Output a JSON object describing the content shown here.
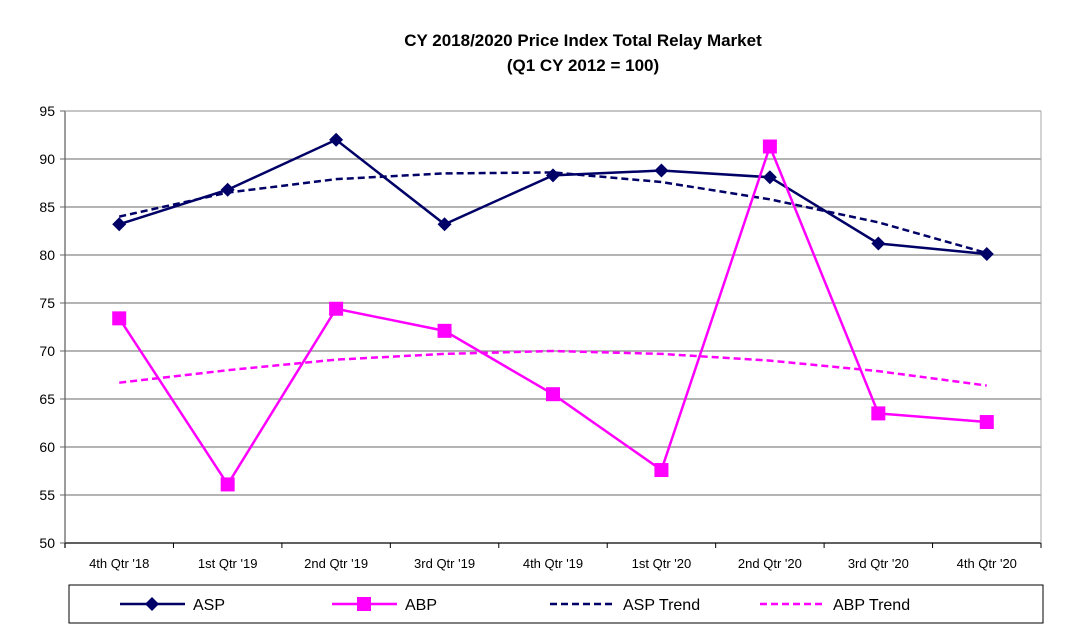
{
  "chart_data": {
    "type": "line",
    "title": "CY 2018/2020 Price Index Total Relay Market",
    "subtitle": "(Q1 CY 2012 = 100)",
    "xlabel": "",
    "ylabel": "",
    "categories": [
      "4th Qtr '18",
      "1st Qtr '19",
      "2nd Qtr  '19",
      "3rd Qtr '19",
      "4th Qtr '19",
      "1st Qtr '20",
      "2nd Qtr  '20",
      "3rd Qtr '20",
      "4th Qtr '20"
    ],
    "ylim": [
      50,
      95
    ],
    "yticks": [
      50,
      55,
      60,
      65,
      70,
      75,
      80,
      85,
      90,
      95
    ],
    "grid": true,
    "legend_position": "bottom",
    "series": [
      {
        "name": "ASP",
        "color": "#000066",
        "style": "solid",
        "marker": "diamond",
        "values": [
          83.2,
          86.8,
          92.0,
          83.2,
          88.3,
          88.8,
          88.1,
          81.2,
          80.1
        ]
      },
      {
        "name": "ABP",
        "color": "#ff00ff",
        "style": "solid",
        "marker": "square",
        "values": [
          73.4,
          56.1,
          74.4,
          72.1,
          65.5,
          57.6,
          91.3,
          63.5,
          62.6
        ]
      },
      {
        "name": "ASP Trend",
        "color": "#000066",
        "style": "dashed",
        "marker": "none",
        "values": [
          84.0,
          86.5,
          87.9,
          88.5,
          88.6,
          87.6,
          85.8,
          83.4,
          80.2
        ]
      },
      {
        "name": "ABP Trend",
        "color": "#ff00ff",
        "style": "dashed",
        "marker": "none",
        "values": [
          66.7,
          68.0,
          69.1,
          69.7,
          70.0,
          69.7,
          69.0,
          67.9,
          66.4
        ]
      }
    ]
  }
}
